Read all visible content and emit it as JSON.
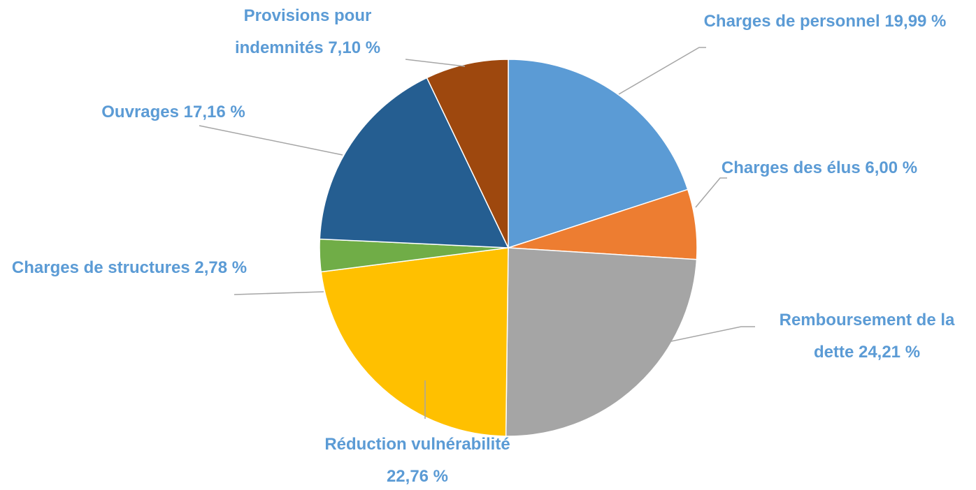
{
  "chart_data": {
    "type": "pie",
    "categories": [
      "Charges de personnel",
      "Charges des élus",
      "Remboursement de la dette",
      "Réduction vulnérabilité",
      "Charges de structures",
      "Ouvrages",
      "Provisions pour indemnités"
    ],
    "values": [
      19.99,
      6.0,
      24.21,
      22.76,
      2.78,
      17.16,
      7.1
    ],
    "value_labels": [
      "19,99 %",
      "6,00 %",
      "24,21 %",
      "22,76 %",
      "2,78 %",
      "17,16 %",
      "7,10 %"
    ],
    "colors": [
      "#5b9bd5",
      "#ed7d31",
      "#a5a5a5",
      "#ffc000",
      "#70ad47",
      "#255e91",
      "#9e480e"
    ]
  }
}
